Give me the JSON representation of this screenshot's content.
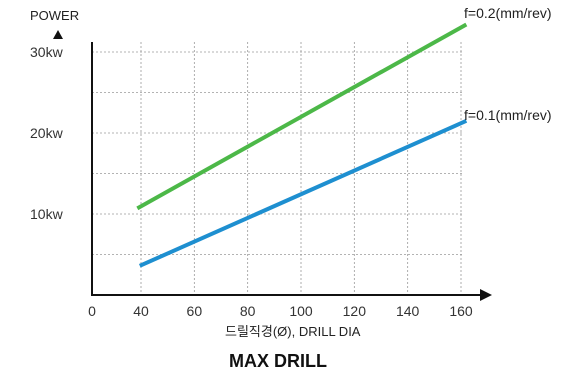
{
  "chart_data": {
    "type": "line",
    "title": "MAX DRILL",
    "xlabel": "드릴직경(Ø), DRILL DIA",
    "ylabel": "POWER",
    "x_ticks": [
      0,
      40,
      60,
      80,
      100,
      120,
      140,
      160
    ],
    "y_ticks": [
      "10kw",
      "20kw",
      "30kw"
    ],
    "y_tick_values": [
      10,
      20,
      30
    ],
    "xlim": [
      0,
      160
    ],
    "ylim": [
      0,
      30
    ],
    "grid": true,
    "series": [
      {
        "name": "f=0.2(mm/rev)",
        "color": "#4cb848",
        "x": [
          37,
          162
        ],
        "y": [
          10.7,
          33.4
        ]
      },
      {
        "name": "f=0.1(mm/rev)",
        "color": "#1e8fd0",
        "x": [
          39,
          162
        ],
        "y": [
          3.6,
          21.5
        ]
      }
    ]
  }
}
